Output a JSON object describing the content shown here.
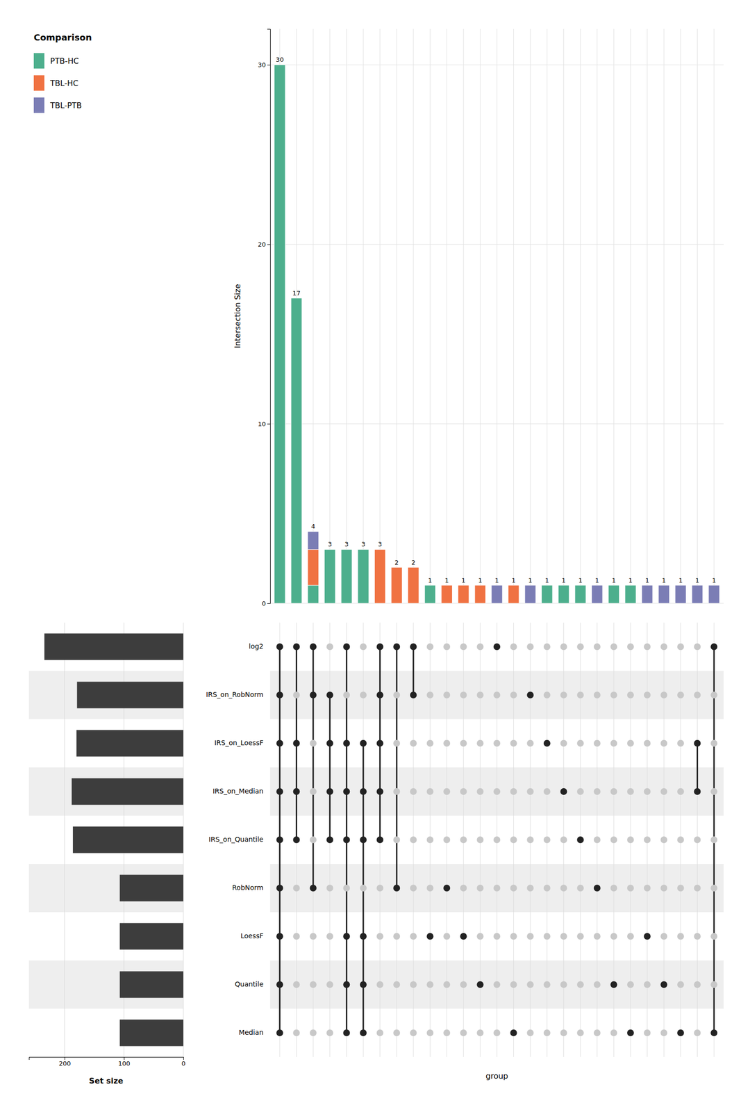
{
  "chart_data": [
    {
      "type": "bar",
      "stacked": true,
      "categories": [
        null,
        null,
        null,
        null,
        null,
        null,
        null,
        null,
        null,
        null,
        null,
        null,
        null,
        null,
        null,
        null,
        null,
        null,
        null,
        null,
        null,
        null,
        null,
        null,
        null,
        null,
        null
      ],
      "series": [
        {
          "name": "PTB-HC",
          "color": "#4daf8d",
          "values": [
            30,
            17,
            1,
            3,
            3,
            3,
            0,
            0,
            0,
            1,
            0,
            0,
            0,
            0,
            0,
            0,
            1,
            1,
            1,
            0,
            1,
            1,
            0,
            0,
            0,
            0,
            0
          ]
        },
        {
          "name": "TBL-HC",
          "color": "#f07242",
          "values": [
            0,
            0,
            2,
            0,
            0,
            0,
            3,
            2,
            2,
            0,
            1,
            1,
            1,
            0,
            1,
            0,
            0,
            0,
            0,
            0,
            0,
            0,
            0,
            0,
            0,
            0,
            0
          ]
        },
        {
          "name": "TBL-PTB",
          "color": "#7b7db5",
          "values": [
            0,
            0,
            1,
            0,
            0,
            0,
            0,
            0,
            0,
            0,
            0,
            0,
            0,
            1,
            0,
            1,
            0,
            0,
            0,
            1,
            0,
            0,
            1,
            1,
            1,
            1,
            1
          ]
        }
      ],
      "totals": [
        30,
        17,
        4,
        3,
        3,
        3,
        3,
        2,
        2,
        1,
        1,
        1,
        1,
        1,
        1,
        1,
        1,
        1,
        1,
        1,
        1,
        1,
        1,
        1,
        1,
        1,
        1
      ],
      "ylabel": "Intersection Size",
      "ylim": [
        0,
        32
      ],
      "yticks": [
        0,
        10,
        20,
        30
      ],
      "grid": true,
      "legend": "left",
      "legend_title": "Comparison",
      "tick_labels": "y"
    },
    {
      "type": "dot_matrix",
      "categories": [
        "log2",
        "IRS_on_RobNorm",
        "IRS_on_LoessF",
        "IRS_on_Median",
        "IRS_on_Quantile",
        "RobNorm",
        "LoessF",
        "Quantile",
        "Median"
      ],
      "members": [
        [
          1,
          1,
          1,
          1,
          1,
          1,
          1,
          1,
          1
        ],
        [
          1,
          0,
          1,
          1,
          1,
          0,
          0,
          0,
          0
        ],
        [
          1,
          1,
          0,
          0,
          0,
          1,
          0,
          0,
          0
        ],
        [
          0,
          1,
          1,
          1,
          1,
          0,
          0,
          0,
          0
        ],
        [
          1,
          0,
          1,
          1,
          1,
          0,
          1,
          1,
          1
        ],
        [
          0,
          0,
          1,
          1,
          1,
          0,
          1,
          1,
          1
        ],
        [
          1,
          1,
          1,
          1,
          1,
          0,
          0,
          0,
          0
        ],
        [
          1,
          0,
          0,
          0,
          0,
          1,
          0,
          0,
          0
        ],
        [
          1,
          1,
          0,
          0,
          0,
          0,
          0,
          0,
          0
        ],
        [
          0,
          0,
          0,
          0,
          0,
          0,
          1,
          0,
          0
        ],
        [
          0,
          0,
          0,
          0,
          0,
          1,
          0,
          0,
          0
        ],
        [
          0,
          0,
          0,
          0,
          0,
          0,
          1,
          0,
          0
        ],
        [
          0,
          0,
          0,
          0,
          0,
          0,
          0,
          1,
          0
        ],
        [
          1,
          0,
          0,
          0,
          0,
          0,
          0,
          0,
          0
        ],
        [
          0,
          0,
          0,
          0,
          0,
          0,
          0,
          0,
          1
        ],
        [
          0,
          1,
          0,
          0,
          0,
          0,
          0,
          0,
          0
        ],
        [
          0,
          0,
          1,
          0,
          0,
          0,
          0,
          0,
          0
        ],
        [
          0,
          0,
          0,
          1,
          0,
          0,
          0,
          0,
          0
        ],
        [
          0,
          0,
          0,
          0,
          1,
          0,
          0,
          0,
          0
        ],
        [
          0,
          0,
          0,
          0,
          0,
          1,
          0,
          0,
          0
        ],
        [
          0,
          0,
          0,
          0,
          0,
          0,
          0,
          1,
          0
        ],
        [
          0,
          0,
          0,
          0,
          0,
          0,
          0,
          0,
          1
        ],
        [
          0,
          0,
          0,
          0,
          0,
          0,
          1,
          0,
          0
        ],
        [
          0,
          0,
          0,
          0,
          0,
          0,
          0,
          1,
          0
        ],
        [
          0,
          0,
          0,
          0,
          0,
          0,
          0,
          0,
          1
        ],
        [
          0,
          0,
          1,
          1,
          0,
          0,
          0,
          0,
          0
        ],
        [
          1,
          0,
          0,
          0,
          0,
          0,
          0,
          0,
          1
        ]
      ],
      "color": "#222222",
      "xlabel": "group",
      "tick_labels": "y"
    },
    {
      "type": "bar",
      "orientation": "horizontal",
      "categories": [
        null,
        null,
        null,
        null,
        null,
        null,
        null,
        null,
        null
      ],
      "values": [
        234,
        179,
        180,
        188,
        186,
        107,
        107,
        107,
        107
      ],
      "color": "#3d3d3d",
      "xlim": [
        260,
        0
      ],
      "xticks": [
        200,
        100,
        0
      ],
      "xlabel": "Set size",
      "grid": true,
      "tick_labels": "x"
    }
  ]
}
